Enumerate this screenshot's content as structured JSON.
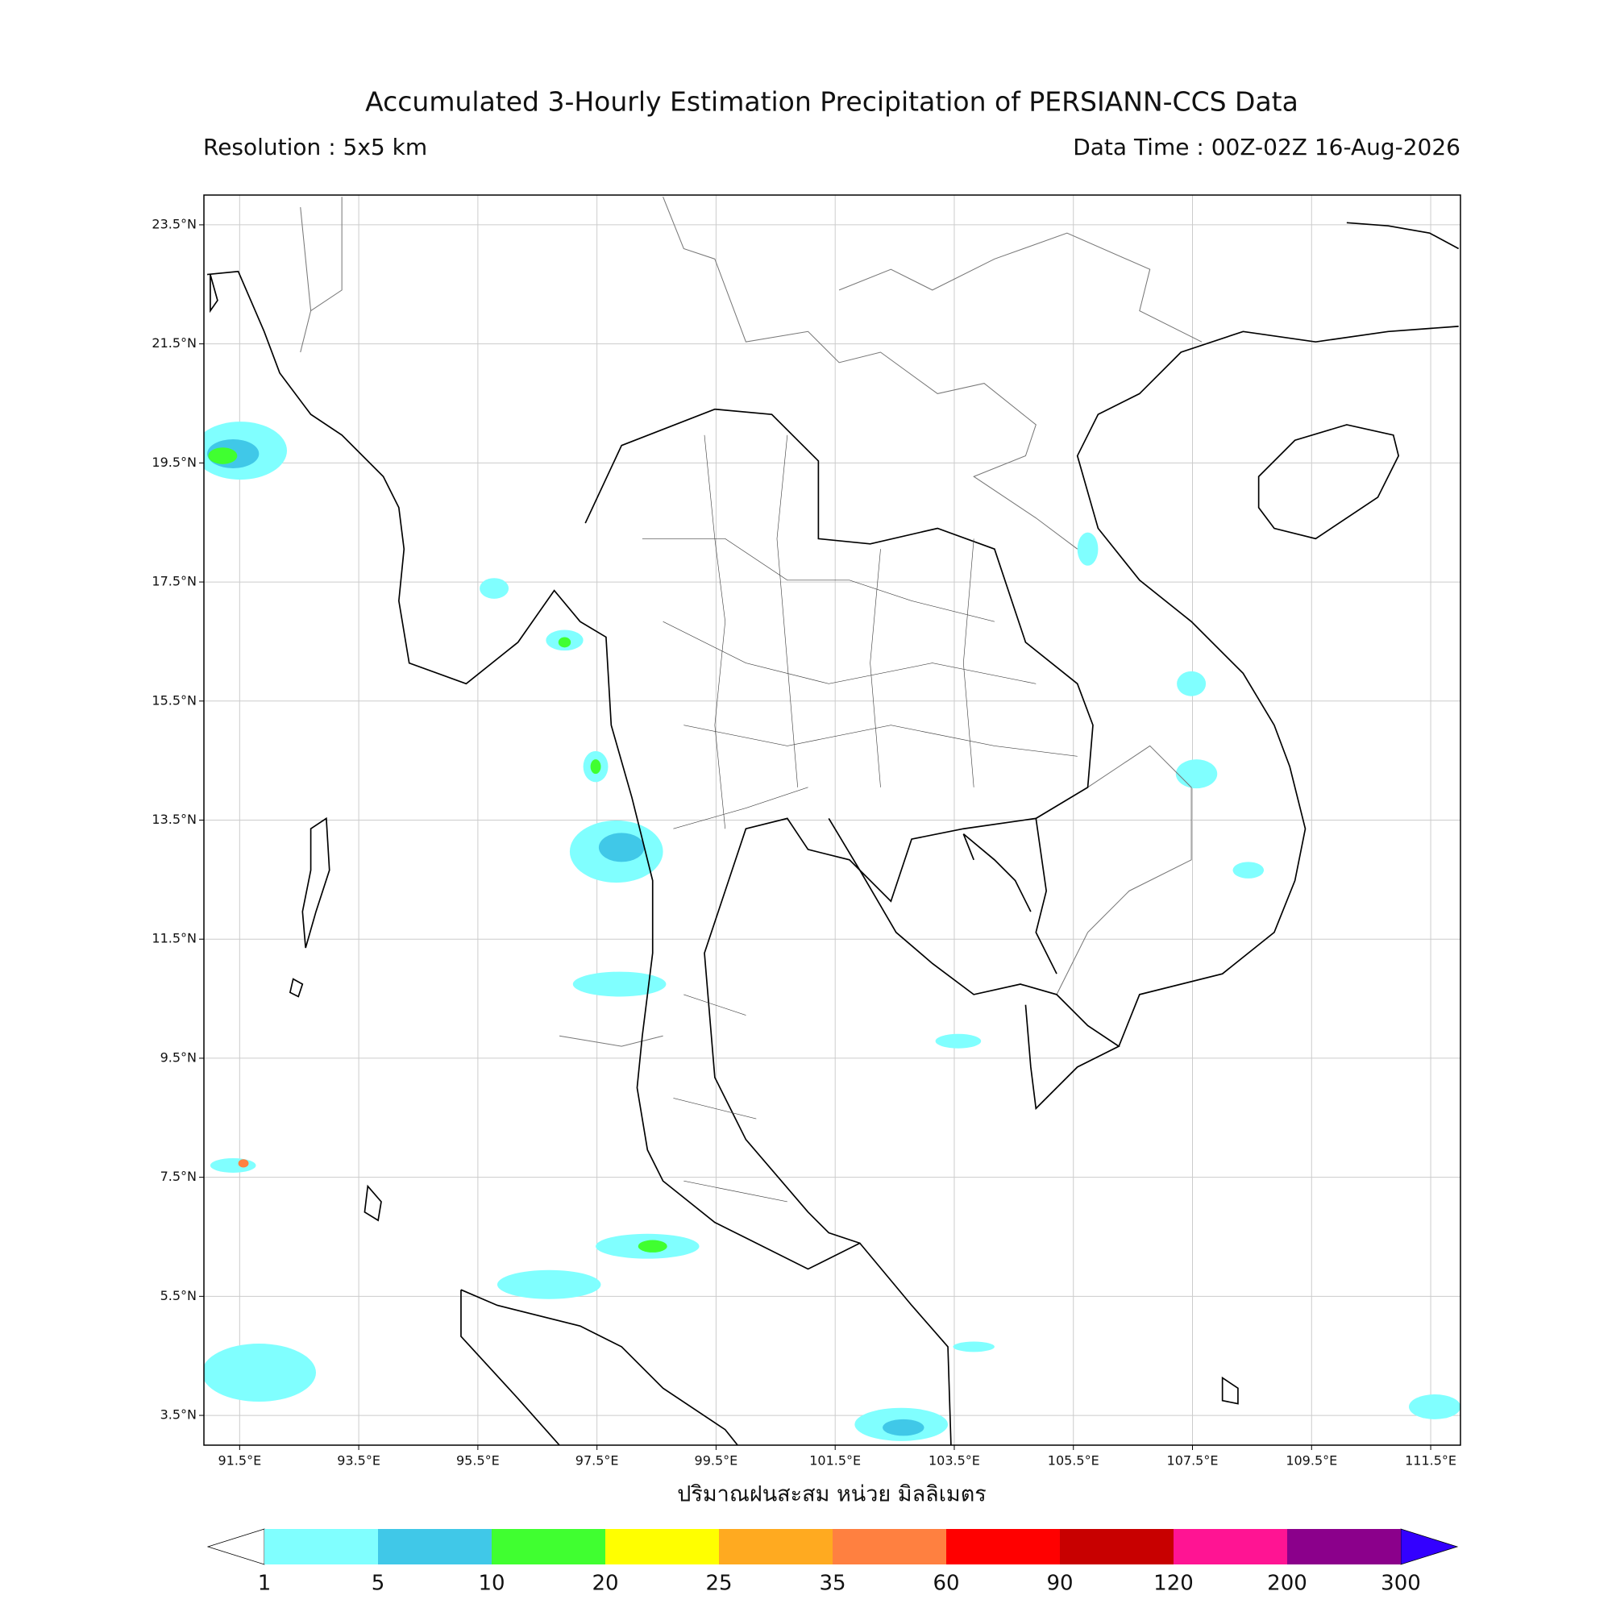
{
  "title": "Accumulated 3-Hourly Estimation Precipitation of PERSIANN-CCS Data",
  "subtitle_left": "Resolution : 5x5 km",
  "subtitle_right": "Data Time : 00Z-02Z 16-Aug-2026",
  "map": {
    "xlim": [
      90.9,
      112.0
    ],
    "ylim": [
      3.0,
      24.0
    ],
    "grid": true,
    "xticks": [
      {
        "value": 91.5,
        "label": "91.5°E"
      },
      {
        "value": 93.5,
        "label": "93.5°E"
      },
      {
        "value": 95.5,
        "label": "95.5°E"
      },
      {
        "value": 97.5,
        "label": "97.5°E"
      },
      {
        "value": 99.5,
        "label": "99.5°E"
      },
      {
        "value": 101.5,
        "label": "101.5°E"
      },
      {
        "value": 103.5,
        "label": "103.5°E"
      },
      {
        "value": 105.5,
        "label": "105.5°E"
      },
      {
        "value": 107.5,
        "label": "107.5°E"
      },
      {
        "value": 109.5,
        "label": "109.5°E"
      },
      {
        "value": 111.5,
        "label": "111.5°E"
      }
    ],
    "yticks": [
      {
        "value": 3.5,
        "label": "3.5°N"
      },
      {
        "value": 5.5,
        "label": "5.5°N"
      },
      {
        "value": 7.5,
        "label": "7.5°N"
      },
      {
        "value": 9.5,
        "label": "9.5°N"
      },
      {
        "value": 11.5,
        "label": "11.5°N"
      },
      {
        "value": 13.5,
        "label": "13.5°N"
      },
      {
        "value": 15.5,
        "label": "15.5°N"
      },
      {
        "value": 17.5,
        "label": "17.5°N"
      },
      {
        "value": 19.5,
        "label": "19.5°N"
      },
      {
        "value": 21.5,
        "label": "21.5°N"
      },
      {
        "value": 23.5,
        "label": "23.5°N"
      }
    ]
  },
  "xlabel": "ปริมาณฝนสะสม หน่วย มิลลิเมตร",
  "colorbar": {
    "levels": [
      1,
      5,
      10,
      20,
      25,
      35,
      60,
      90,
      120,
      200,
      300
    ],
    "colors": [
      "#80ffff",
      "#40c8e8",
      "#40ff30",
      "#ffff00",
      "#ffaa20",
      "#ff8040",
      "#ff0000",
      "#c80000",
      "#ff1493",
      "#8b008b"
    ],
    "under_color": "#ffffff",
    "over_color": "#3300ff"
  }
}
